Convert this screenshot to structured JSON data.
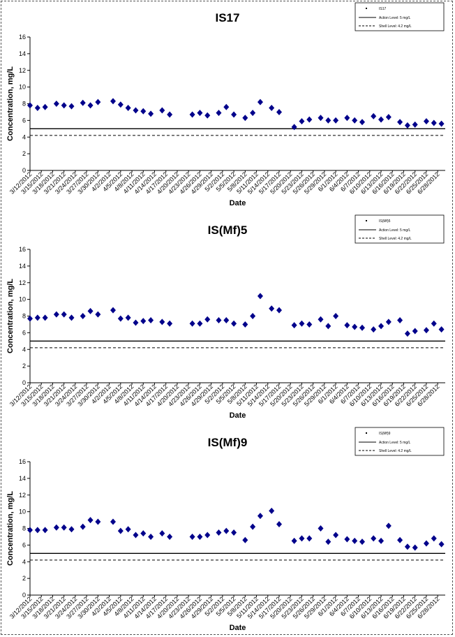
{
  "chart_data": [
    {
      "type": "scatter",
      "title": "IS17",
      "xlabel": "Date",
      "ylabel": "Concentration, mg/L",
      "ylim": [
        0,
        16
      ],
      "yticks": [
        0,
        2,
        4,
        6,
        8,
        10,
        12,
        14,
        16
      ],
      "xlim": [
        "3/12/2012",
        "6/30/2012"
      ],
      "xtick_labels": [
        "3/12/2012",
        "3/15/2012",
        "3/18/2012",
        "3/21/2012",
        "3/24/2012",
        "3/27/2012",
        "3/30/2012",
        "4/2/2012",
        "4/5/2012",
        "4/8/2012",
        "4/11/2012",
        "4/14/2012",
        "4/17/2012",
        "4/20/2012",
        "4/23/2012",
        "4/26/2012",
        "4/29/2012",
        "5/2/2012",
        "5/5/2012",
        "5/8/2012",
        "5/11/2012",
        "5/14/2012",
        "5/17/2012",
        "5/20/2012",
        "5/23/2012",
        "5/26/2012",
        "5/29/2012",
        "6/1/2012",
        "6/4/2012",
        "6/7/2012",
        "6/10/2012",
        "6/13/2012",
        "6/16/2012",
        "6/19/2012",
        "6/22/2012",
        "6/25/2012",
        "6/28/2012"
      ],
      "grid": false,
      "legend_position": "top-right",
      "legend": [
        "IS17",
        "Action Level: 5 mg/L",
        "Shell Level: 4.2 mg/L"
      ],
      "series": [
        {
          "name": "IS17",
          "marker": "diamond",
          "color": "#00008B",
          "x": [
            "3/12/2012",
            "3/14/2012",
            "3/16/2012",
            "3/19/2012",
            "3/21/2012",
            "3/23/2012",
            "3/26/2012",
            "3/28/2012",
            "3/30/2012",
            "4/3/2012",
            "4/5/2012",
            "4/7/2012",
            "4/9/2012",
            "4/11/2012",
            "4/13/2012",
            "4/16/2012",
            "4/18/2012",
            "4/24/2012",
            "4/26/2012",
            "4/28/2012",
            "5/1/2012",
            "5/3/2012",
            "5/5/2012",
            "5/8/2012",
            "5/10/2012",
            "5/12/2012",
            "5/15/2012",
            "5/17/2012",
            "5/21/2012",
            "5/23/2012",
            "5/25/2012",
            "5/28/2012",
            "5/30/2012",
            "6/1/2012",
            "6/4/2012",
            "6/6/2012",
            "6/8/2012",
            "6/11/2012",
            "6/13/2012",
            "6/15/2012",
            "6/18/2012",
            "6/20/2012",
            "6/22/2012",
            "6/25/2012",
            "6/27/2012",
            "6/29/2012"
          ],
          "y": [
            7.8,
            7.5,
            7.6,
            8.0,
            7.8,
            7.7,
            8.1,
            7.8,
            8.2,
            8.3,
            7.9,
            7.5,
            7.2,
            7.1,
            6.8,
            7.2,
            6.7,
            6.7,
            6.9,
            6.6,
            6.9,
            7.6,
            6.7,
            6.3,
            6.9,
            8.2,
            7.5,
            7.0,
            5.2,
            5.9,
            6.1,
            6.3,
            6.0,
            6.0,
            6.3,
            6.0,
            5.8,
            6.5,
            6.1,
            6.4,
            5.8,
            5.4,
            5.5,
            5.9,
            5.7,
            5.6
          ]
        },
        {
          "name": "Action Level: 5 mg/L",
          "line": "solid",
          "y": 5.0
        },
        {
          "name": "Shell Level: 4.2 mg/L",
          "line": "dashed",
          "y": 4.2
        }
      ]
    },
    {
      "type": "scatter",
      "title": "IS(Mf)5",
      "xlabel": "Date",
      "ylabel": "Concentration, mg/L",
      "ylim": [
        0,
        16
      ],
      "yticks": [
        0,
        2,
        4,
        6,
        8,
        10,
        12,
        14,
        16
      ],
      "xlim": [
        "3/12/2012",
        "6/30/2012"
      ],
      "xtick_labels": [
        "3/12/2012",
        "3/15/2012",
        "3/18/2012",
        "3/21/2012",
        "3/24/2012",
        "3/27/2012",
        "3/30/2012",
        "4/2/2012",
        "4/5/2012",
        "4/8/2012",
        "4/11/2012",
        "4/14/2012",
        "4/17/2012",
        "4/20/2012",
        "4/23/2012",
        "4/26/2012",
        "4/29/2012",
        "5/2/2012",
        "5/5/2012",
        "5/8/2012",
        "5/11/2012",
        "5/14/2012",
        "5/17/2012",
        "5/20/2012",
        "5/23/2012",
        "5/26/2012",
        "5/29/2012",
        "6/1/2012",
        "6/4/2012",
        "6/7/2012",
        "6/10/2012",
        "6/13/2012",
        "6/16/2012",
        "6/19/2012",
        "6/22/2012",
        "6/25/2012",
        "6/28/2012"
      ],
      "grid": false,
      "legend_position": "top-right",
      "legend": [
        "IS(Mf)5",
        "Action Level: 5 mg/L",
        "Shell Level: 4.2 mg/L"
      ],
      "series": [
        {
          "name": "IS(Mf)5",
          "marker": "diamond",
          "color": "#00008B",
          "x": [
            "3/12/2012",
            "3/14/2012",
            "3/16/2012",
            "3/19/2012",
            "3/21/2012",
            "3/23/2012",
            "3/26/2012",
            "3/28/2012",
            "3/30/2012",
            "4/3/2012",
            "4/5/2012",
            "4/7/2012",
            "4/9/2012",
            "4/11/2012",
            "4/13/2012",
            "4/16/2012",
            "4/18/2012",
            "4/24/2012",
            "4/26/2012",
            "4/28/2012",
            "5/1/2012",
            "5/3/2012",
            "5/5/2012",
            "5/8/2012",
            "5/10/2012",
            "5/12/2012",
            "5/15/2012",
            "5/17/2012",
            "5/21/2012",
            "5/23/2012",
            "5/25/2012",
            "5/28/2012",
            "5/30/2012",
            "6/1/2012",
            "6/4/2012",
            "6/6/2012",
            "6/8/2012",
            "6/11/2012",
            "6/13/2012",
            "6/15/2012",
            "6/18/2012",
            "6/20/2012",
            "6/22/2012",
            "6/25/2012",
            "6/27/2012",
            "6/29/2012"
          ],
          "y": [
            7.7,
            7.8,
            7.8,
            8.2,
            8.2,
            7.8,
            8.0,
            8.6,
            8.2,
            8.7,
            7.7,
            7.8,
            7.2,
            7.4,
            7.5,
            7.3,
            7.1,
            7.1,
            7.1,
            7.6,
            7.5,
            7.5,
            7.1,
            7.0,
            8.0,
            10.4,
            8.9,
            8.7,
            6.9,
            7.1,
            7.0,
            7.6,
            6.8,
            8.0,
            6.9,
            6.7,
            6.6,
            6.4,
            6.8,
            7.3,
            7.5,
            5.9,
            6.2,
            6.3,
            7.1,
            6.4
          ]
        },
        {
          "name": "Action Level: 5 mg/L",
          "line": "solid",
          "y": 5.0
        },
        {
          "name": "Shell Level: 4.2 mg/L",
          "line": "dashed",
          "y": 4.2
        }
      ]
    },
    {
      "type": "scatter",
      "title": "IS(Mf)9",
      "xlabel": "Date",
      "ylabel": "Concentration, mg/L",
      "ylim": [
        0,
        16
      ],
      "yticks": [
        0,
        2,
        4,
        6,
        8,
        10,
        12,
        14,
        16
      ],
      "xlim": [
        "3/12/2012",
        "6/30/2012"
      ],
      "xtick_labels": [
        "3/12/2012",
        "3/15/2012",
        "3/18/2012",
        "3/21/2012",
        "3/24/2012",
        "3/27/2012",
        "3/30/2012",
        "4/2/2012",
        "4/5/2012",
        "4/8/2012",
        "4/11/2012",
        "4/14/2012",
        "4/17/2012",
        "4/20/2012",
        "4/23/2012",
        "4/26/2012",
        "4/29/2012",
        "5/2/2012",
        "5/5/2012",
        "5/8/2012",
        "5/11/2012",
        "5/14/2012",
        "5/17/2012",
        "5/20/2012",
        "5/23/2012",
        "5/26/2012",
        "5/29/2012",
        "6/1/2012",
        "6/4/2012",
        "6/7/2012",
        "6/10/2012",
        "6/13/2012",
        "6/16/2012",
        "6/19/2012",
        "6/22/2012",
        "6/25/2012",
        "6/28/2012"
      ],
      "grid": false,
      "legend_position": "top-right",
      "legend": [
        "IS(Mf)9",
        "Action Level: 5 mg/L",
        "Shell Level: 4.2 mg/L"
      ],
      "series": [
        {
          "name": "IS(Mf)9",
          "marker": "diamond",
          "color": "#00008B",
          "x": [
            "3/12/2012",
            "3/14/2012",
            "3/16/2012",
            "3/19/2012",
            "3/21/2012",
            "3/23/2012",
            "3/26/2012",
            "3/28/2012",
            "3/30/2012",
            "4/3/2012",
            "4/5/2012",
            "4/7/2012",
            "4/9/2012",
            "4/11/2012",
            "4/13/2012",
            "4/16/2012",
            "4/18/2012",
            "4/24/2012",
            "4/26/2012",
            "4/28/2012",
            "5/1/2012",
            "5/3/2012",
            "5/5/2012",
            "5/8/2012",
            "5/10/2012",
            "5/12/2012",
            "5/15/2012",
            "5/17/2012",
            "5/21/2012",
            "5/23/2012",
            "5/25/2012",
            "5/28/2012",
            "5/30/2012",
            "6/1/2012",
            "6/4/2012",
            "6/6/2012",
            "6/8/2012",
            "6/11/2012",
            "6/13/2012",
            "6/15/2012",
            "6/18/2012",
            "6/20/2012",
            "6/22/2012",
            "6/25/2012",
            "6/27/2012",
            "6/29/2012"
          ],
          "y": [
            7.8,
            7.8,
            7.8,
            8.1,
            8.1,
            7.9,
            8.2,
            9.0,
            8.8,
            8.8,
            7.7,
            7.9,
            7.2,
            7.4,
            7.0,
            7.4,
            7.0,
            7.0,
            7.0,
            7.2,
            7.5,
            7.7,
            7.5,
            6.6,
            8.2,
            9.5,
            10.1,
            8.5,
            6.5,
            6.8,
            6.8,
            8.0,
            6.4,
            7.2,
            6.7,
            6.5,
            6.4,
            6.8,
            6.5,
            8.3,
            6.6,
            5.8,
            5.7,
            6.2,
            6.8,
            6.1
          ]
        },
        {
          "name": "Action Level: 5 mg/L",
          "line": "solid",
          "y": 5.0
        },
        {
          "name": "Shell Level: 4.2 mg/L",
          "line": "dashed",
          "y": 4.2
        }
      ]
    }
  ]
}
